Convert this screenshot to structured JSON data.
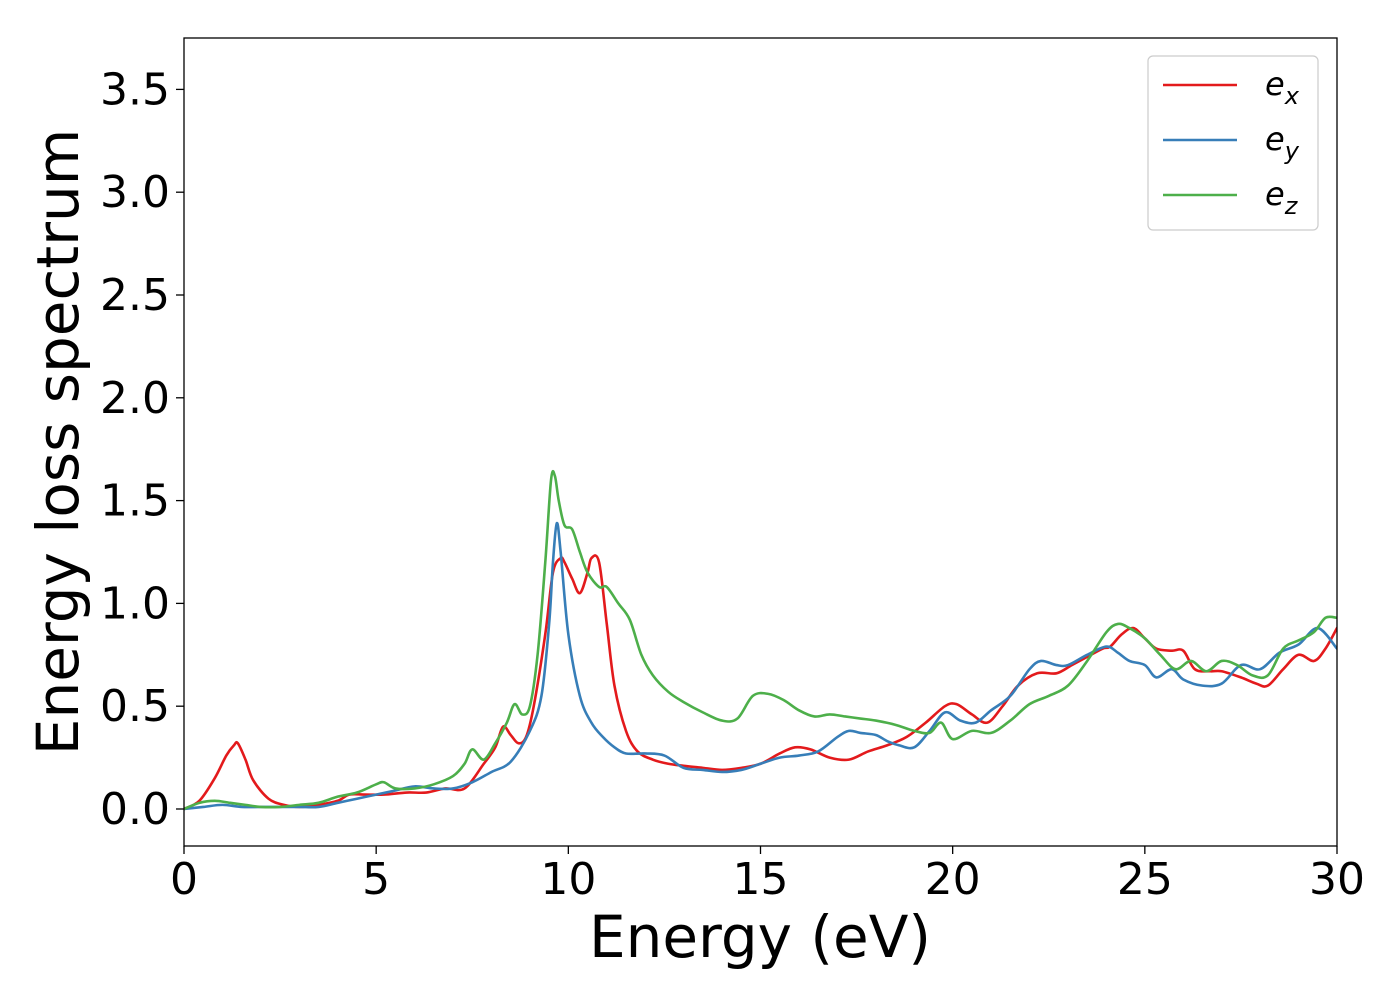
{
  "chart_data": {
    "type": "line",
    "title": "",
    "xlabel": "Energy (eV)",
    "ylabel": "Energy loss spectrum",
    "xlim": [
      0,
      30
    ],
    "ylim": [
      -0.18,
      3.75
    ],
    "xticks": [
      0,
      5,
      10,
      15,
      20,
      25,
      30
    ],
    "xtick_labels": [
      "0",
      "5",
      "10",
      "15",
      "20",
      "25",
      "30"
    ],
    "yticks": [
      0.0,
      0.5,
      1.0,
      1.5,
      2.0,
      2.5,
      3.0,
      3.5
    ],
    "ytick_labels": [
      "0.0",
      "0.5",
      "1.0",
      "1.5",
      "2.0",
      "2.5",
      "3.0",
      "3.5"
    ],
    "grid": false,
    "legend_position": "top-right",
    "series": [
      {
        "name": "e_x",
        "legend_base": "e",
        "legend_sub": "x",
        "color": "#e31a1c",
        "x": [
          0,
          0.4,
          0.8,
          1.1,
          1.3,
          1.4,
          1.6,
          1.8,
          2.2,
          2.6,
          3.0,
          3.5,
          4.0,
          4.3,
          4.7,
          5.2,
          5.8,
          6.3,
          6.8,
          7.3,
          7.8,
          8.1,
          8.3,
          8.5,
          8.7,
          8.9,
          9.1,
          9.4,
          9.6,
          9.8,
          9.9,
          10.1,
          10.3,
          10.5,
          10.6,
          10.8,
          11.0,
          11.2,
          11.5,
          11.8,
          12.2,
          12.6,
          13.0,
          13.5,
          14.0,
          14.5,
          15.0,
          15.5,
          15.9,
          16.3,
          16.8,
          17.3,
          17.8,
          18.3,
          18.8,
          19.3,
          19.8,
          20.1,
          20.5,
          20.9,
          21.3,
          21.7,
          22.2,
          22.7,
          23.1,
          23.5,
          23.9,
          24.1,
          24.4,
          24.7,
          25.0,
          25.3,
          25.7,
          26.0,
          26.3,
          26.7,
          27.0,
          27.5,
          27.9,
          28.2,
          28.6,
          29.0,
          29.4,
          29.7,
          30.0
        ],
        "y": [
          0,
          0.04,
          0.15,
          0.26,
          0.31,
          0.32,
          0.24,
          0.14,
          0.05,
          0.02,
          0.01,
          0.02,
          0.04,
          0.07,
          0.07,
          0.07,
          0.08,
          0.08,
          0.1,
          0.1,
          0.22,
          0.3,
          0.4,
          0.36,
          0.32,
          0.35,
          0.5,
          0.85,
          1.15,
          1.22,
          1.2,
          1.12,
          1.05,
          1.15,
          1.22,
          1.2,
          0.9,
          0.6,
          0.38,
          0.28,
          0.24,
          0.22,
          0.21,
          0.2,
          0.19,
          0.2,
          0.22,
          0.27,
          0.3,
          0.29,
          0.25,
          0.24,
          0.28,
          0.31,
          0.35,
          0.42,
          0.5,
          0.51,
          0.46,
          0.42,
          0.5,
          0.6,
          0.66,
          0.66,
          0.7,
          0.74,
          0.78,
          0.79,
          0.85,
          0.88,
          0.83,
          0.78,
          0.77,
          0.77,
          0.68,
          0.67,
          0.67,
          0.64,
          0.61,
          0.6,
          0.68,
          0.75,
          0.72,
          0.78,
          0.88
        ]
      },
      {
        "name": "e_y",
        "legend_base": "e",
        "legend_sub": "y",
        "color": "#377eb8",
        "x": [
          0,
          0.5,
          1.0,
          1.5,
          2.0,
          2.5,
          3.0,
          3.5,
          4.0,
          4.5,
          5.0,
          5.5,
          6.0,
          6.5,
          7.0,
          7.5,
          8.0,
          8.5,
          9.0,
          9.3,
          9.5,
          9.6,
          9.7,
          9.8,
          10.0,
          10.3,
          10.6,
          10.9,
          11.2,
          11.5,
          12.0,
          12.5,
          13.0,
          13.5,
          14.0,
          14.5,
          15.0,
          15.5,
          16.0,
          16.5,
          17.0,
          17.3,
          17.6,
          18.0,
          18.3,
          18.6,
          19.0,
          19.4,
          19.8,
          20.2,
          20.6,
          21.0,
          21.5,
          22.0,
          22.3,
          22.7,
          23.0,
          23.5,
          24.0,
          24.3,
          24.6,
          25.0,
          25.3,
          25.7,
          26.0,
          26.5,
          27.0,
          27.5,
          28.0,
          28.5,
          29.0,
          29.5,
          30.0
        ],
        "y": [
          0,
          0.01,
          0.02,
          0.01,
          0.01,
          0.01,
          0.01,
          0.01,
          0.03,
          0.05,
          0.07,
          0.09,
          0.11,
          0.1,
          0.1,
          0.13,
          0.18,
          0.23,
          0.38,
          0.55,
          0.9,
          1.2,
          1.39,
          1.25,
          0.85,
          0.55,
          0.42,
          0.35,
          0.3,
          0.27,
          0.27,
          0.26,
          0.2,
          0.19,
          0.18,
          0.19,
          0.22,
          0.25,
          0.26,
          0.28,
          0.35,
          0.38,
          0.37,
          0.36,
          0.33,
          0.31,
          0.3,
          0.38,
          0.47,
          0.43,
          0.42,
          0.48,
          0.55,
          0.68,
          0.72,
          0.7,
          0.7,
          0.75,
          0.79,
          0.76,
          0.72,
          0.7,
          0.64,
          0.68,
          0.63,
          0.6,
          0.61,
          0.7,
          0.68,
          0.76,
          0.8,
          0.88,
          0.78
        ]
      },
      {
        "name": "e_z",
        "legend_base": "e",
        "legend_sub": "z",
        "color": "#4daf4a",
        "x": [
          0,
          0.4,
          0.8,
          1.2,
          1.6,
          2.0,
          2.5,
          3.0,
          3.5,
          4.0,
          4.5,
          5.0,
          5.2,
          5.5,
          6.0,
          6.5,
          7.0,
          7.3,
          7.5,
          7.8,
          8.1,
          8.4,
          8.6,
          8.8,
          9.0,
          9.2,
          9.4,
          9.55,
          9.65,
          9.75,
          9.9,
          10.1,
          10.3,
          10.5,
          10.8,
          11.0,
          11.3,
          11.6,
          11.9,
          12.2,
          12.6,
          13.0,
          13.5,
          14.0,
          14.4,
          14.8,
          15.2,
          15.6,
          16.0,
          16.4,
          16.8,
          17.2,
          17.6,
          18.0,
          18.5,
          19.0,
          19.4,
          19.7,
          20.0,
          20.5,
          21.0,
          21.5,
          22.0,
          22.5,
          23.0,
          23.5,
          24.0,
          24.3,
          24.6,
          25.0,
          25.4,
          25.8,
          26.2,
          26.6,
          27.0,
          27.4,
          27.8,
          28.2,
          28.6,
          29.0,
          29.4,
          29.7,
          30.0
        ],
        "y": [
          0,
          0.03,
          0.04,
          0.03,
          0.02,
          0.01,
          0.01,
          0.02,
          0.03,
          0.06,
          0.08,
          0.12,
          0.13,
          0.1,
          0.1,
          0.12,
          0.16,
          0.22,
          0.29,
          0.24,
          0.32,
          0.42,
          0.51,
          0.46,
          0.5,
          0.75,
          1.2,
          1.6,
          1.62,
          1.5,
          1.38,
          1.36,
          1.25,
          1.15,
          1.08,
          1.08,
          1.0,
          0.92,
          0.75,
          0.65,
          0.57,
          0.52,
          0.47,
          0.43,
          0.44,
          0.55,
          0.56,
          0.53,
          0.48,
          0.45,
          0.46,
          0.45,
          0.44,
          0.43,
          0.41,
          0.38,
          0.37,
          0.42,
          0.34,
          0.38,
          0.37,
          0.43,
          0.51,
          0.55,
          0.6,
          0.72,
          0.86,
          0.9,
          0.88,
          0.83,
          0.75,
          0.68,
          0.72,
          0.67,
          0.72,
          0.7,
          0.65,
          0.65,
          0.78,
          0.82,
          0.86,
          0.93,
          0.93
        ]
      }
    ]
  }
}
